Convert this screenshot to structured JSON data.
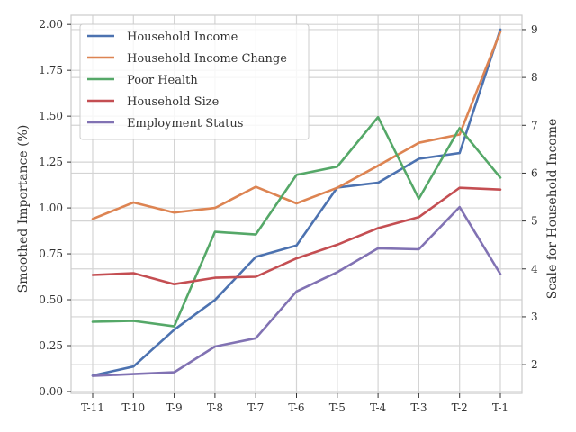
{
  "chart_data": {
    "type": "line",
    "categories": [
      "T-11",
      "T-10",
      "T-9",
      "T-8",
      "T-7",
      "T-6",
      "T-5",
      "T-4",
      "T-3",
      "T-2",
      "T-1"
    ],
    "ylabel": "Smoothed Importance (%)",
    "ylabel_right": "Scale for Household Income",
    "ylim": [
      -0.01,
      2.05
    ],
    "ylim_right": [
      1.4,
      9.3
    ],
    "yticks": [
      0.0,
      0.25,
      0.5,
      0.75,
      1.0,
      1.25,
      1.5,
      1.75,
      2.0
    ],
    "ytick_labels": [
      "0.00",
      "0.25",
      "0.50",
      "0.75",
      "1.00",
      "1.25",
      "1.50",
      "1.75",
      "2.00"
    ],
    "yticks_right": [
      2,
      3,
      4,
      5,
      6,
      7,
      8,
      9
    ],
    "ytick_labels_right": [
      "2",
      "3",
      "4",
      "5",
      "6",
      "7",
      "8",
      "9"
    ],
    "grid": true,
    "legend_position": "top-left",
    "series": [
      {
        "name": "Household Income",
        "color": "#4c72b0",
        "axis": "right",
        "values": [
          1.77,
          1.96,
          2.73,
          3.35,
          4.25,
          4.49,
          5.7,
          5.8,
          6.3,
          6.42,
          9.0
        ]
      },
      {
        "name": "Household Income Change",
        "color": "#dd8452",
        "axis": "left",
        "values": [
          0.94,
          1.03,
          0.975,
          1.0,
          1.115,
          1.025,
          1.11,
          1.23,
          1.355,
          1.4,
          1.96
        ]
      },
      {
        "name": "Poor Health",
        "color": "#55a868",
        "axis": "left",
        "values": [
          0.38,
          0.385,
          0.355,
          0.87,
          0.855,
          1.18,
          1.225,
          1.495,
          1.05,
          1.435,
          1.165
        ]
      },
      {
        "name": "Household Size",
        "color": "#c44e52",
        "axis": "left",
        "values": [
          0.635,
          0.645,
          0.585,
          0.62,
          0.625,
          0.725,
          0.8,
          0.89,
          0.95,
          1.11,
          1.1
        ]
      },
      {
        "name": "Employment Status",
        "color": "#8172b3",
        "axis": "left",
        "values": [
          0.085,
          0.095,
          0.105,
          0.245,
          0.29,
          0.545,
          0.65,
          0.78,
          0.775,
          1.005,
          0.64
        ]
      }
    ]
  }
}
